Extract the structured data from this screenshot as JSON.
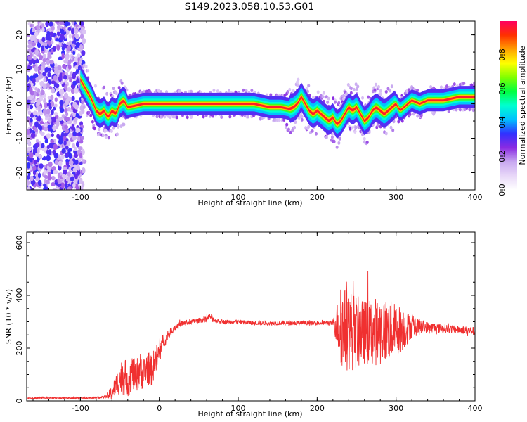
{
  "title": "S149.2023.058.10.53.G01",
  "chart_data": [
    {
      "type": "heatmap",
      "xlabel": "Height of straight line (km)",
      "ylabel": "Frequency (Hz)",
      "xlim": [
        -168,
        400
      ],
      "ylim": [
        -25,
        24
      ],
      "x_ticks": [
        "-100",
        "0",
        "100",
        "200",
        "300",
        "400"
      ],
      "y_ticks": [
        "20",
        "10",
        "0",
        "-10",
        "-20"
      ],
      "colorbar": {
        "label": "Normalized spectral amplitude",
        "ticks": [
          "0.0",
          "0.2",
          "0.4",
          "0.6",
          "0.8"
        ],
        "range": [
          0,
          1
        ],
        "colors": [
          "#ffffff",
          "#e8d8f8",
          "#c8a8f0",
          "#8a2be2",
          "#3030ff",
          "#00c0ff",
          "#00ffd0",
          "#00ff40",
          "#80ff00",
          "#ffff00",
          "#ffa000",
          "#ff3000",
          "#ff0060"
        ]
      },
      "noise_region_x": [
        -168,
        -95
      ],
      "ridge": {
        "x": [
          -100,
          -95,
          -90,
          -85,
          -80,
          -75,
          -70,
          -65,
          -60,
          -55,
          -50,
          -45,
          -40,
          -30,
          -20,
          0,
          20,
          40,
          60,
          80,
          100,
          120,
          140,
          155,
          165,
          170,
          175,
          180,
          185,
          190,
          195,
          200,
          205,
          210,
          215,
          220,
          225,
          230,
          235,
          240,
          245,
          250,
          255,
          260,
          265,
          270,
          275,
          280,
          285,
          290,
          295,
          300,
          305,
          310,
          320,
          330,
          340,
          360,
          380,
          400
        ],
        "y": [
          7,
          5,
          3,
          1,
          -2,
          -3,
          -2,
          -4,
          -2,
          -3,
          0,
          1,
          -1,
          -0.5,
          0,
          0,
          0,
          0,
          0,
          0,
          0,
          0,
          -1,
          -1,
          -1.5,
          -1,
          0,
          2,
          0,
          -2,
          -3,
          -2,
          -3,
          -4,
          -5,
          -4,
          -6,
          -5,
          -3,
          -1,
          -2,
          -1,
          -3,
          -5,
          -4,
          -2,
          -1,
          -2,
          -3,
          -2,
          -1,
          0,
          -2,
          -1,
          1,
          0,
          1,
          1,
          2,
          2
        ]
      }
    },
    {
      "type": "line",
      "xlabel": "Height of straight line (km)",
      "ylabel": "SNR (10 * v/v)",
      "xlim": [
        -168,
        400
      ],
      "ylim": [
        0,
        640
      ],
      "x_ticks": [
        "-100",
        "0",
        "100",
        "200",
        "300",
        "400"
      ],
      "y_ticks": [
        "0",
        "200",
        "400",
        "600"
      ],
      "color": "#f03030",
      "series": [
        {
          "x": [
            -168,
            -140,
            -110,
            -80,
            -68,
            -60,
            -55,
            -50,
            -45,
            -40,
            -35,
            -30,
            -25,
            -20,
            -15,
            -10,
            -5,
            0,
            5,
            10,
            15,
            20,
            30,
            40,
            50,
            60,
            65,
            70,
            80,
            100,
            120,
            140,
            160,
            180,
            200,
            220,
            230,
            240,
            250,
            260,
            270,
            280,
            290,
            300,
            310,
            320,
            340,
            360,
            380,
            400
          ],
          "y": [
            10,
            12,
            10,
            12,
            15,
            30,
            60,
            80,
            100,
            70,
            110,
            90,
            120,
            100,
            130,
            110,
            150,
            180,
            230,
            240,
            265,
            280,
            295,
            300,
            305,
            310,
            320,
            305,
            300,
            300,
            295,
            295,
            295,
            295,
            295,
            295,
            280,
            270,
            260,
            260,
            260,
            270,
            265,
            270,
            275,
            280,
            280,
            275,
            270,
            265
          ],
          "amplitude": [
            3,
            3,
            3,
            3,
            5,
            30,
            40,
            60,
            80,
            60,
            70,
            60,
            70,
            60,
            70,
            60,
            60,
            50,
            30,
            20,
            15,
            12,
            10,
            10,
            10,
            10,
            12,
            10,
            8,
            8,
            8,
            8,
            8,
            8,
            8,
            10,
            150,
            160,
            140,
            120,
            130,
            130,
            120,
            100,
            80,
            40,
            20,
            18,
            15,
            15
          ]
        }
      ]
    }
  ]
}
